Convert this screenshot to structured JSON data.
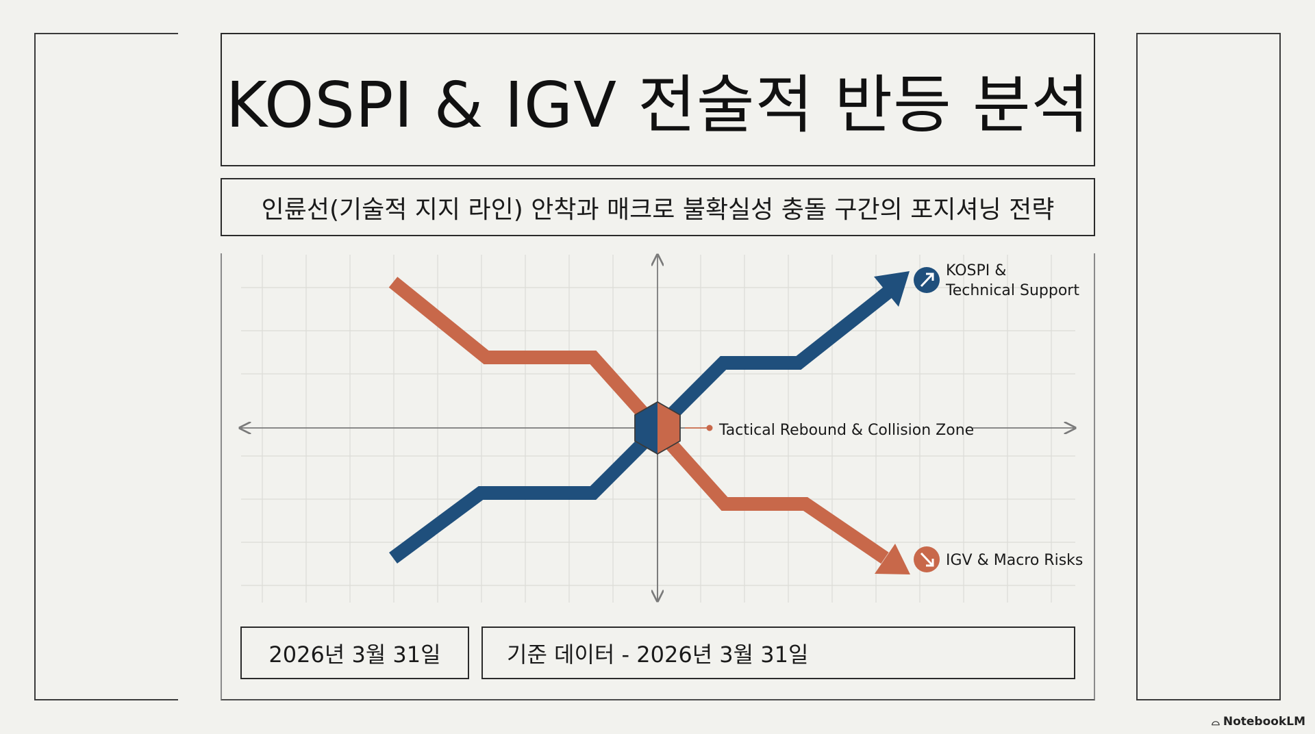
{
  "title": "KOSPI & IGV 전술적 반등 분석",
  "subtitle": "인륜선(기술적 지지 라인) 안착과 매크로 불확실성 충돌 구간의 포지셔닝 전략",
  "diagram": {
    "center_label": "Tactical Rebound & Collision Zone",
    "kospi_label_line1": "KOSPI &",
    "kospi_label_line2": "Technical Support",
    "igv_label": "IGV & Macro Risks",
    "colors": {
      "kospi": "#1f4f7c",
      "igv": "#c8684a",
      "grid": "#dcdcd6",
      "axis": "#7a7a7a"
    },
    "icons": {
      "kospi": "arrow-up-right-icon",
      "igv": "arrow-down-right-icon"
    }
  },
  "footer": {
    "date": "2026년 3월 31일",
    "basis": "기준 데이터 - 2026년 3월 31일"
  },
  "brand": "NotebookLM"
}
